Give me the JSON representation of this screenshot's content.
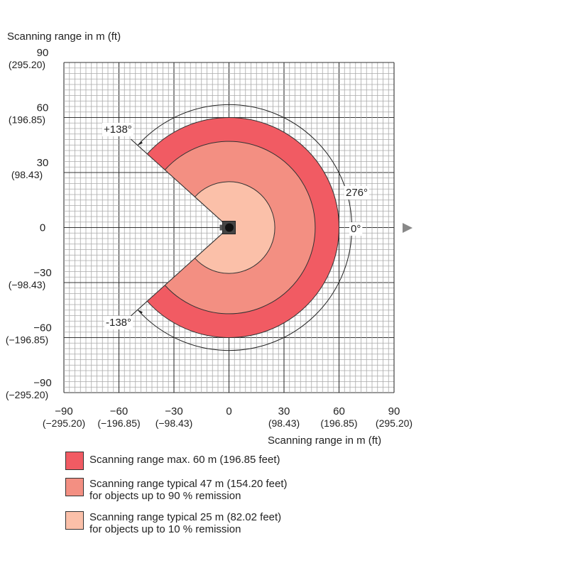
{
  "chart_data": {
    "type": "polar-area",
    "ylabel": "Scanning range in m (ft)",
    "xlabel": "Scanning range in m (ft)",
    "xlim": [
      -90,
      90
    ],
    "ylim": [
      -90,
      90
    ],
    "grid_minor_step": 3,
    "grid_major_step": 30,
    "x_ticks": [
      {
        "v": -90,
        "m": "−90",
        "ft": "(−295.20)"
      },
      {
        "v": -60,
        "m": "−60",
        "ft": "(−196.85)"
      },
      {
        "v": -30,
        "m": "−30",
        "ft": "(−98.43)"
      },
      {
        "v": 0,
        "m": "0",
        "ft": ""
      },
      {
        "v": 30,
        "m": "30",
        "ft": "(98.43)"
      },
      {
        "v": 60,
        "m": "60",
        "ft": "(196.85)"
      },
      {
        "v": 90,
        "m": "90",
        "ft": "(295.20)"
      }
    ],
    "y_ticks": [
      {
        "v": 90,
        "m": "90",
        "ft": "(295.20)"
      },
      {
        "v": 60,
        "m": "60",
        "ft": "(196.85)"
      },
      {
        "v": 30,
        "m": "30",
        "ft": "(98.43)"
      },
      {
        "v": 0,
        "m": "0",
        "ft": ""
      },
      {
        "v": -30,
        "m": "−30",
        "ft": "(−98.43)"
      },
      {
        "v": -60,
        "m": "−60",
        "ft": "(−196.85)"
      },
      {
        "v": -90,
        "m": "−90",
        "ft": "(−295.20)"
      }
    ],
    "aperture_deg": 276,
    "angle_labels": {
      "plus": "+138°",
      "minus": "-138°",
      "zero": "0°",
      "total": "276°"
    },
    "series": [
      {
        "name": "Scanning range max. 60 m (196.85 feet)",
        "line2": "",
        "radius": 60,
        "color": "#f15b63"
      },
      {
        "name": "Scanning range typical 47 m (154.20 feet)",
        "line2": "for objects up to 90 % remission",
        "radius": 47,
        "color": "#f38f82"
      },
      {
        "name": "Scanning range typical 25 m (82.02 feet)",
        "line2": "for objects up to 10 % remission",
        "radius": 25,
        "color": "#fbc0a9"
      }
    ]
  }
}
